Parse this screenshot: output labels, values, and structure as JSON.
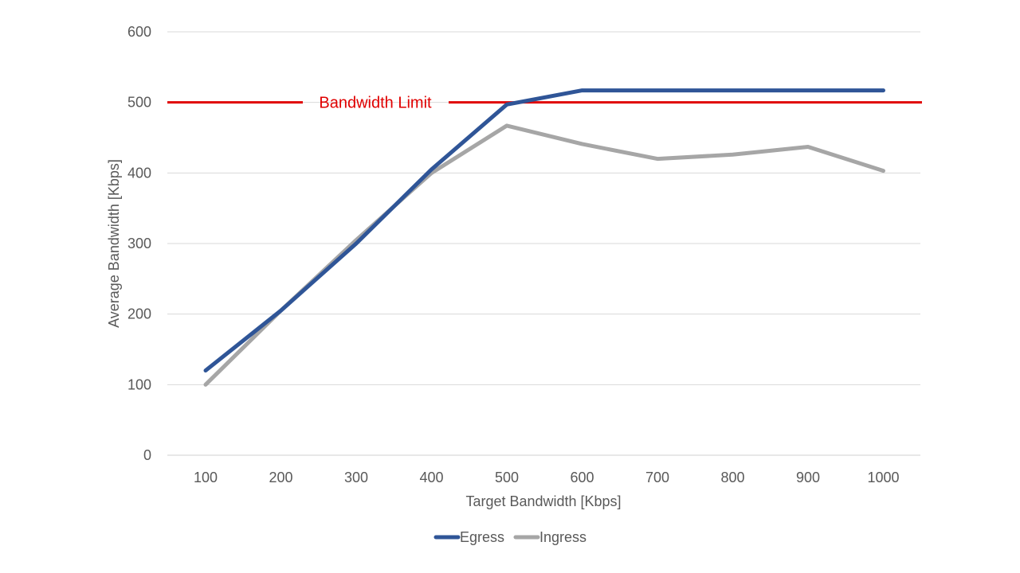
{
  "chart_data": {
    "type": "line",
    "title": "",
    "xlabel": "Target Bandwidth [Kbps]",
    "ylabel": "Average Bandwidth [Kbps]",
    "x": [
      100,
      200,
      300,
      400,
      500,
      600,
      700,
      800,
      900,
      1000
    ],
    "x_tick_labels": [
      "100",
      "200",
      "300",
      "400",
      "500",
      "600",
      "700",
      "800",
      "900",
      "1000"
    ],
    "ylim": [
      0,
      600
    ],
    "y_ticks": [
      0,
      100,
      200,
      300,
      400,
      500,
      600
    ],
    "y_tick_labels": [
      "0",
      "100",
      "200",
      "300",
      "400",
      "500",
      "600"
    ],
    "grid": "horizontal",
    "legend_position": "bottom",
    "series": [
      {
        "name": "Egress",
        "color": "#2F5597",
        "values": [
          120,
          205,
          300,
          405,
          497,
          517,
          517,
          517,
          517,
          517
        ]
      },
      {
        "name": "Ingress",
        "color": "#A6A6A6",
        "values": [
          100,
          205,
          305,
          400,
          467,
          441,
          420,
          426,
          437,
          403
        ]
      }
    ],
    "reference_line": {
      "label": "Bandwidth Limit",
      "value": 500,
      "color": "#E00000"
    }
  }
}
